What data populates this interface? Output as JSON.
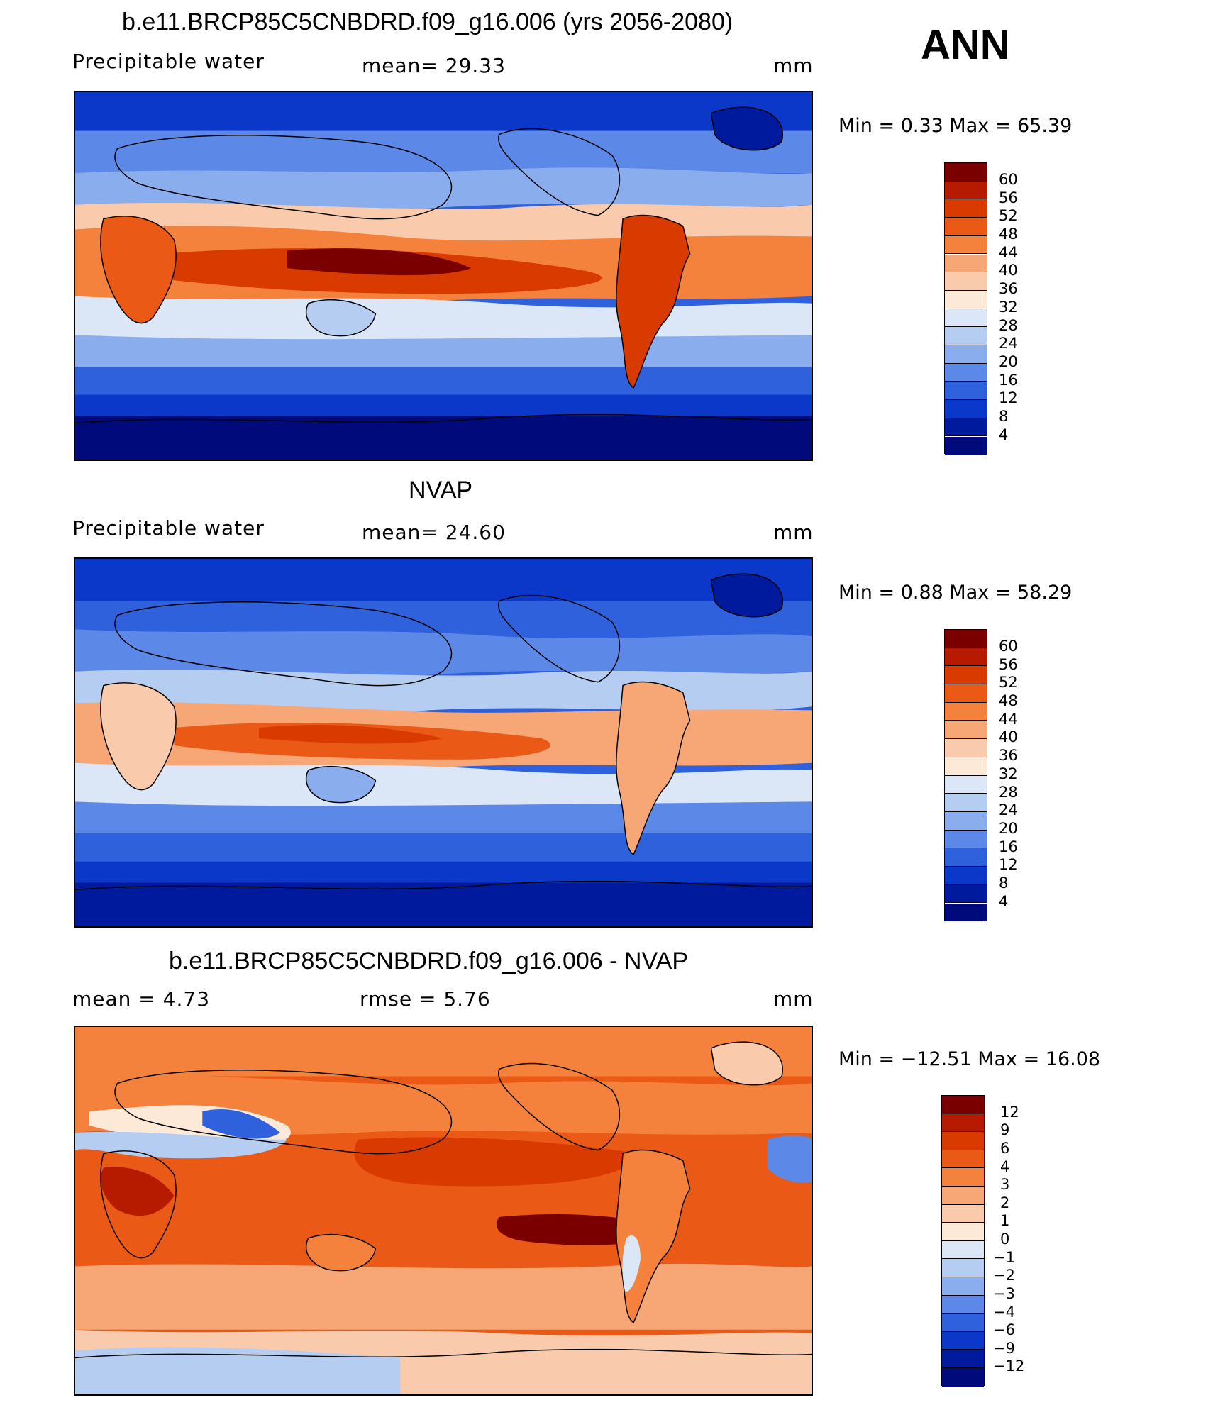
{
  "header": {
    "season": "ANN"
  },
  "panels": [
    {
      "title": "b.e11.BRCP85C5CNBDRD.f09_g16.006 (yrs 2056-2080)",
      "left_label": "Precipitable  water",
      "center_label": "mean=   29.33",
      "units": "mm",
      "minmax": "Min  =     0.33  Max  =    65.39",
      "levels": [
        "60",
        "56",
        "52",
        "48",
        "44",
        "40",
        "36",
        "32",
        "28",
        "24",
        "20",
        "16",
        "12",
        "8",
        "4"
      ],
      "colors": [
        "#7a0000",
        "#b61b00",
        "#d83a00",
        "#ea5a16",
        "#f5823c",
        "#f7a676",
        "#f9caab",
        "#fde9d8",
        "#dbe7f6",
        "#b5cdf1",
        "#8aadee",
        "#5c89e8",
        "#2f61dd",
        "#0b38c8",
        "#001a9e",
        "#000a7a"
      ]
    },
    {
      "title": "NVAP",
      "left_label": "Precipitable  water",
      "center_label": "mean=   24.60",
      "units": "mm",
      "minmax": "Min  =     0.88  Max  =    58.29",
      "levels": [
        "60",
        "56",
        "52",
        "48",
        "44",
        "40",
        "36",
        "32",
        "28",
        "24",
        "20",
        "16",
        "12",
        "8",
        "4"
      ],
      "colors": [
        "#7a0000",
        "#b61b00",
        "#d83a00",
        "#ea5a16",
        "#f5823c",
        "#f7a676",
        "#f9caab",
        "#fde9d8",
        "#dbe7f6",
        "#b5cdf1",
        "#8aadee",
        "#5c89e8",
        "#2f61dd",
        "#0b38c8",
        "#001a9e",
        "#000a7a"
      ]
    },
    {
      "title": "b.e11.BRCP85C5CNBDRD.f09_g16.006 - NVAP",
      "left_label": "mean  =     4.73",
      "center_label": "rmse  =     5.76",
      "units": "mm",
      "minmax": "Min  = −12.51  Max  =    16.08",
      "levels": [
        "12",
        "9",
        "6",
        "4",
        "3",
        "2",
        "1",
        "0",
        "−1",
        "−2",
        "−3",
        "−4",
        "−6",
        "−9",
        "−12"
      ],
      "colors": [
        "#7a0000",
        "#b61b00",
        "#d83a00",
        "#ea5a16",
        "#f5823c",
        "#f7a676",
        "#f9caab",
        "#fde9d8",
        "#dbe7f6",
        "#b5cdf1",
        "#8aadee",
        "#5c89e8",
        "#2f61dd",
        "#0b38c8",
        "#001a9e",
        "#000a7a"
      ]
    }
  ]
}
